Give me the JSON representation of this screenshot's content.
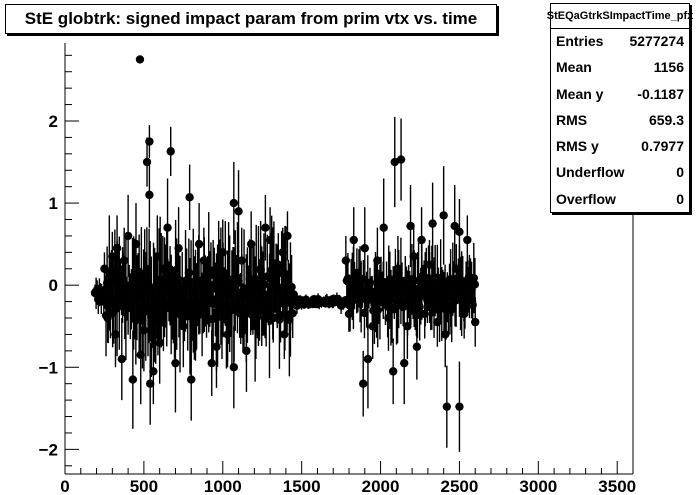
{
  "chart_data": {
    "type": "scatter",
    "title": "StE globtrk: signed impact param from prim vtx vs. time",
    "xlim": [
      0,
      3600
    ],
    "ylim": [
      -2.3,
      2.95
    ],
    "x_ticks": [
      0,
      500,
      1000,
      1500,
      2000,
      2500,
      3000,
      3500
    ],
    "y_ticks": [
      -2,
      -1,
      0,
      1,
      2
    ],
    "grid": false,
    "marker": "filled-circle",
    "error_bars": true,
    "point_color": "#000000",
    "stats": {
      "name": "StEQaGtrkSImpactTime_pfx",
      "entries": [
        {
          "label": "Entries",
          "value": "5277274"
        },
        {
          "label": "Mean",
          "value": "1156"
        },
        {
          "label": "Mean y",
          "value": "-0.1187"
        },
        {
          "label": "RMS",
          "value": "659.3"
        },
        {
          "label": "RMS y",
          "value": "0.7977"
        },
        {
          "label": "Underflow",
          "value": "0"
        },
        {
          "label": "Overflow",
          "value": "0"
        }
      ]
    },
    "points": [
      {
        "x": 475,
        "y": 2.75,
        "err": 0.0
      },
      {
        "x": 535,
        "y": 1.75,
        "err": 0.2
      },
      {
        "x": 520,
        "y": 1.5,
        "err": 0.3
      },
      {
        "x": 535,
        "y": 1.1,
        "err": 0.4
      },
      {
        "x": 670,
        "y": 1.63,
        "err": 0.3
      },
      {
        "x": 790,
        "y": 1.07,
        "err": 0.4
      },
      {
        "x": 1070,
        "y": 1.0,
        "err": 0.5
      },
      {
        "x": 1100,
        "y": 0.9,
        "err": 0.5
      },
      {
        "x": 2090,
        "y": 1.5,
        "err": 0.55
      },
      {
        "x": 2130,
        "y": 1.53,
        "err": 0.5
      },
      {
        "x": 2420,
        "y": -1.48,
        "err": 0.5
      },
      {
        "x": 2500,
        "y": -1.48,
        "err": 0.55
      },
      {
        "x": 2400,
        "y": 0.85,
        "err": 0.6
      },
      {
        "x": 2470,
        "y": 0.72,
        "err": 0.5
      },
      {
        "x": 2500,
        "y": 0.65,
        "err": 0.4
      },
      {
        "x": 2550,
        "y": 0.55,
        "err": 0.3
      },
      {
        "x": 2330,
        "y": 0.75,
        "err": 0.5
      },
      {
        "x": 2190,
        "y": 0.72,
        "err": 0.5
      },
      {
        "x": 2260,
        "y": 0.55,
        "err": 0.4
      },
      {
        "x": 2020,
        "y": 0.7,
        "err": 0.6
      },
      {
        "x": 1900,
        "y": 0.45,
        "err": 0.5
      },
      {
        "x": 1830,
        "y": 0.55,
        "err": 0.4
      },
      {
        "x": 1780,
        "y": 0.3,
        "err": 0.3
      },
      {
        "x": 1920,
        "y": -0.9,
        "err": 0.6
      },
      {
        "x": 1890,
        "y": -1.2,
        "err": 0.4
      },
      {
        "x": 2080,
        "y": -1.05,
        "err": 0.4
      },
      {
        "x": 2150,
        "y": -0.95,
        "err": 0.5
      },
      {
        "x": 2230,
        "y": -0.75,
        "err": 0.4
      },
      {
        "x": 2410,
        "y": -0.6,
        "err": 0.4
      },
      {
        "x": 2360,
        "y": -0.45,
        "err": 0.3
      },
      {
        "x": 2600,
        "y": -0.45,
        "err": 0.3
      },
      {
        "x": 2580,
        "y": -0.2,
        "err": 0.2
      },
      {
        "x": 1410,
        "y": 0.6,
        "err": 0.3
      },
      {
        "x": 1380,
        "y": 0.4,
        "err": 0.3
      },
      {
        "x": 1300,
        "y": 0.55,
        "err": 0.4
      },
      {
        "x": 1390,
        "y": -0.6,
        "err": 0.3
      },
      {
        "x": 1430,
        "y": -0.35,
        "err": 0.2
      },
      {
        "x": 1350,
        "y": 0.25,
        "err": 0.2
      },
      {
        "x": 1270,
        "y": 0.7,
        "err": 0.4
      },
      {
        "x": 1180,
        "y": 0.5,
        "err": 0.4
      },
      {
        "x": 1150,
        "y": -0.8,
        "err": 0.5
      },
      {
        "x": 1070,
        "y": -1.0,
        "err": 0.5
      },
      {
        "x": 960,
        "y": -0.75,
        "err": 0.5
      },
      {
        "x": 930,
        "y": -0.95,
        "err": 0.4
      },
      {
        "x": 850,
        "y": 0.5,
        "err": 0.5
      },
      {
        "x": 800,
        "y": -1.15,
        "err": 0.5
      },
      {
        "x": 700,
        "y": -0.95,
        "err": 0.6
      },
      {
        "x": 650,
        "y": 0.7,
        "err": 0.6
      },
      {
        "x": 600,
        "y": -0.7,
        "err": 0.5
      },
      {
        "x": 560,
        "y": -1.05,
        "err": 0.4
      },
      {
        "x": 540,
        "y": -1.2,
        "err": 0.5
      },
      {
        "x": 480,
        "y": -0.85,
        "err": 0.6
      },
      {
        "x": 430,
        "y": -1.15,
        "err": 0.6
      },
      {
        "x": 400,
        "y": 0.6,
        "err": 0.5
      },
      {
        "x": 360,
        "y": -0.9,
        "err": 0.5
      },
      {
        "x": 330,
        "y": 0.45,
        "err": 0.4
      },
      {
        "x": 320,
        "y": -0.6,
        "err": 0.4
      },
      {
        "x": 300,
        "y": 0.35,
        "err": 0.3
      },
      {
        "x": 270,
        "y": -0.4,
        "err": 0.3
      },
      {
        "x": 250,
        "y": 0.2,
        "err": 0.2
      },
      {
        "x": 230,
        "y": -0.2,
        "err": 0.15
      },
      {
        "x": 205,
        "y": -0.05,
        "err": 0.05
      },
      {
        "x": 195,
        "y": -0.08,
        "err": 0.05
      },
      {
        "x": 375,
        "y": 0.3,
        "err": 0.4
      },
      {
        "x": 450,
        "y": 0.5,
        "err": 0.5
      },
      {
        "x": 500,
        "y": -0.55,
        "err": 0.5
      },
      {
        "x": 585,
        "y": 0.35,
        "err": 0.5
      },
      {
        "x": 620,
        "y": 0.2,
        "err": 0.4
      },
      {
        "x": 720,
        "y": 0.45,
        "err": 0.5
      },
      {
        "x": 750,
        "y": -0.5,
        "err": 0.5
      },
      {
        "x": 830,
        "y": -0.4,
        "err": 0.4
      },
      {
        "x": 880,
        "y": 0.3,
        "err": 0.4
      },
      {
        "x": 1000,
        "y": 0.4,
        "err": 0.4
      },
      {
        "x": 1030,
        "y": -0.6,
        "err": 0.4
      },
      {
        "x": 1120,
        "y": 0.3,
        "err": 0.4
      },
      {
        "x": 1210,
        "y": -0.5,
        "err": 0.4
      },
      {
        "x": 1240,
        "y": 0.2,
        "err": 0.3
      },
      {
        "x": 1320,
        "y": -0.4,
        "err": 0.3
      },
      {
        "x": 1470,
        "y": -0.25,
        "err": 0.1
      },
      {
        "x": 1520,
        "y": -0.22,
        "err": 0.05
      },
      {
        "x": 1560,
        "y": -0.2,
        "err": 0.05
      },
      {
        "x": 1600,
        "y": -0.2,
        "err": 0.05
      },
      {
        "x": 1650,
        "y": -0.22,
        "err": 0.05
      },
      {
        "x": 1700,
        "y": -0.2,
        "err": 0.08
      },
      {
        "x": 1750,
        "y": -0.25,
        "err": 0.1
      },
      {
        "x": 1800,
        "y": -0.35,
        "err": 0.2
      },
      {
        "x": 1850,
        "y": 0.15,
        "err": 0.3
      },
      {
        "x": 1950,
        "y": -0.5,
        "err": 0.4
      },
      {
        "x": 1980,
        "y": 0.3,
        "err": 0.4
      },
      {
        "x": 2050,
        "y": -0.4,
        "err": 0.4
      },
      {
        "x": 2110,
        "y": 0.2,
        "err": 0.4
      },
      {
        "x": 2170,
        "y": -0.5,
        "err": 0.4
      },
      {
        "x": 2210,
        "y": 0.35,
        "err": 0.4
      },
      {
        "x": 2280,
        "y": -0.35,
        "err": 0.3
      },
      {
        "x": 2310,
        "y": 0.25,
        "err": 0.3
      },
      {
        "x": 2440,
        "y": -0.3,
        "err": 0.3
      },
      {
        "x": 2480,
        "y": 0.2,
        "err": 0.3
      },
      {
        "x": 2530,
        "y": -0.35,
        "err": 0.3
      },
      {
        "x": 2560,
        "y": 0.1,
        "err": 0.2
      }
    ]
  }
}
